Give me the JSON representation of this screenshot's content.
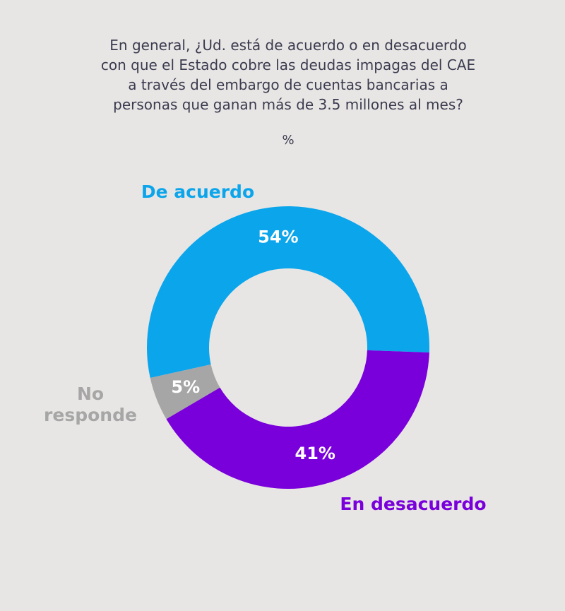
{
  "chart_data": {
    "type": "donut",
    "title": "En general, ¿Ud. está de acuerdo o en desacuerdo con que el Estado cobre las deudas impagas del CAE a través del embargo de cuentas bancarias a personas que ganan más de 3.5 millones al mes?",
    "subtitle": "%",
    "categories": [
      "De acuerdo",
      "En desacuerdo",
      "No responde"
    ],
    "values": [
      54,
      41,
      5
    ],
    "value_labels": [
      "54%",
      "41%",
      "5%"
    ],
    "colors": [
      "#0ba5ec",
      "#7a00db",
      "#a6a6a6"
    ]
  }
}
